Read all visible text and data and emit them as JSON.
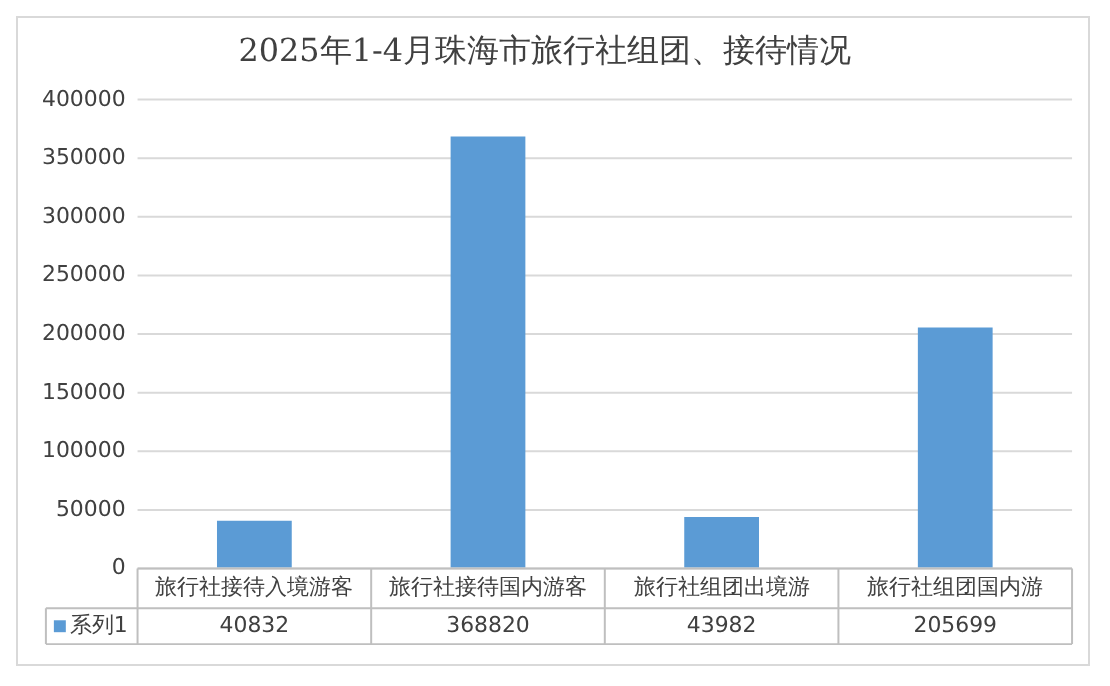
{
  "chart_data": {
    "type": "bar",
    "title": "2025年1-4月珠海市旅行社组团、接待情况",
    "categories": [
      "旅行社接待入境游客",
      "旅行社接待国内游客",
      "旅行社组团出境游",
      "旅行社组团国内游"
    ],
    "series": [
      {
        "name": "系列1",
        "color": "#5b9bd5",
        "values": [
          40832,
          368820,
          43982,
          205699
        ]
      }
    ],
    "ylim": [
      0,
      400000
    ],
    "yticks": [
      0,
      50000,
      100000,
      150000,
      200000,
      250000,
      300000,
      350000,
      400000
    ],
    "grid": "y",
    "data_labels": true
  }
}
